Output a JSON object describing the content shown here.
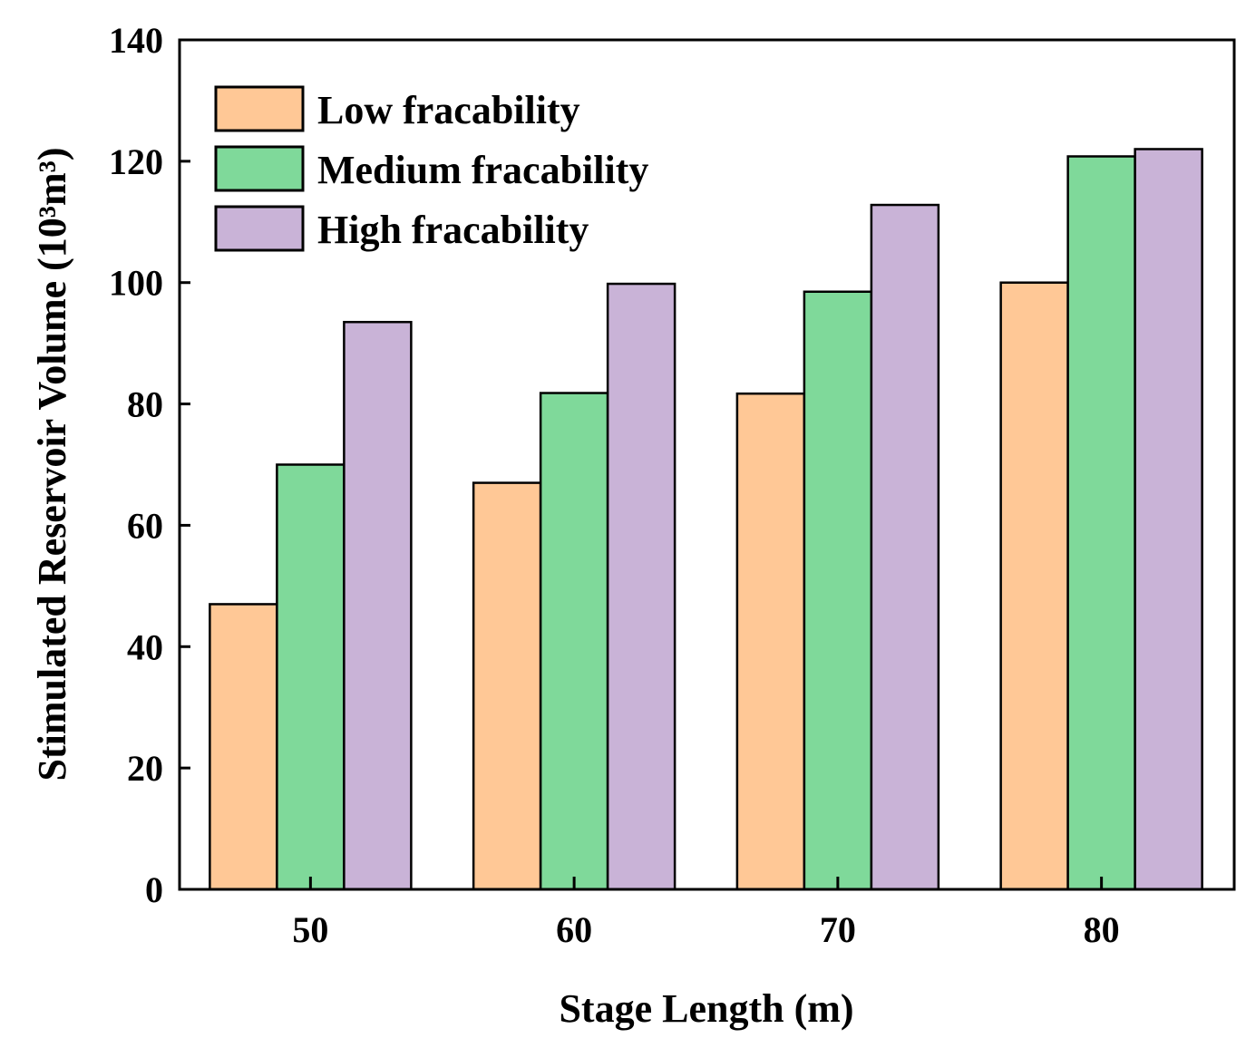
{
  "chart_data": {
    "type": "bar",
    "title": "",
    "xlabel": "Stage Length (m)",
    "ylabel": "Stimulated Reservoir Volume (10³m³)",
    "categories": [
      "50",
      "60",
      "70",
      "80"
    ],
    "series": [
      {
        "name": "Low fracability",
        "color": "#FFC896",
        "values": [
          47,
          67,
          81.7,
          100
        ]
      },
      {
        "name": "Medium fracability",
        "color": "#7FD99A",
        "values": [
          70,
          81.8,
          98.5,
          120.8
        ]
      },
      {
        "name": "High fracability",
        "color": "#C9B3D7",
        "values": [
          93.5,
          99.8,
          112.8,
          122
        ]
      }
    ],
    "ylim": [
      0,
      140
    ],
    "yticks": [
      0,
      20,
      40,
      60,
      80,
      100,
      120,
      140
    ],
    "ytick_labels": [
      "0",
      "20",
      "40",
      "60",
      "80",
      "100",
      "120",
      "140"
    ],
    "grid": false,
    "legend_position": "top-left"
  }
}
